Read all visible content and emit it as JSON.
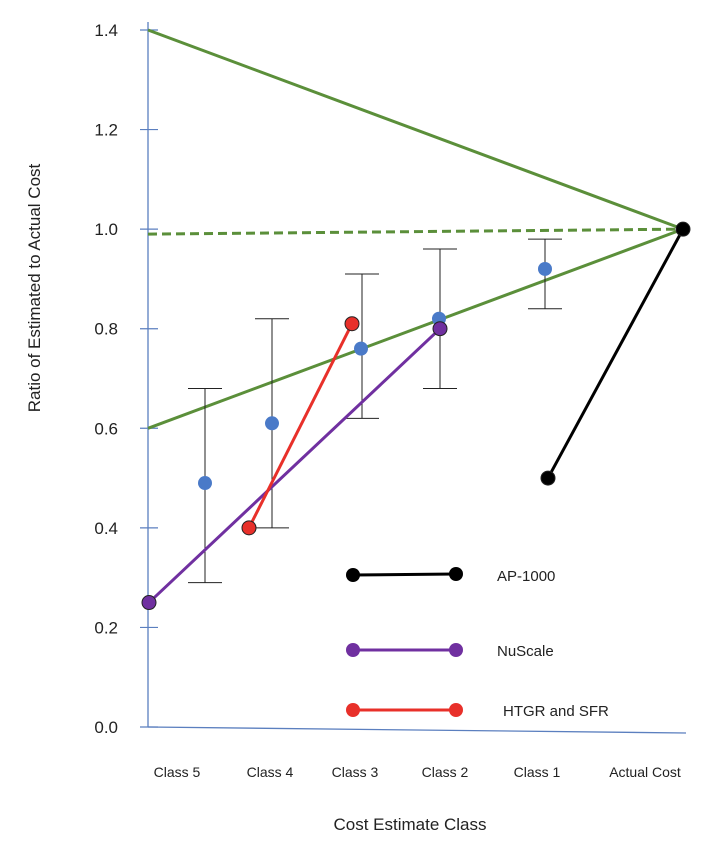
{
  "chart_data": {
    "type": "line",
    "title": "",
    "xlabel": "Cost Estimate Class",
    "ylabel": "Ratio of Estimated to Actual Cost",
    "categories": [
      "Class 5",
      "Class 4",
      "Class 3",
      "Class 2",
      "Class 1",
      "Actual Cost"
    ],
    "ylim": [
      0.0,
      1.4
    ],
    "yticks": [
      {
        "value": 0.0,
        "label": "0.0"
      },
      {
        "value": 0.2,
        "label": "0.2"
      },
      {
        "value": 0.4,
        "label": "0.4"
      },
      {
        "value": 0.6,
        "label": "0.6"
      },
      {
        "value": 0.8,
        "label": "0.8"
      },
      {
        "value": 1.0,
        "label": "1.0"
      },
      {
        "value": 1.2,
        "label": "1.2"
      },
      {
        "value": 1.4,
        "label": "1.4"
      }
    ],
    "grid": false,
    "legend_position": "bottom-right",
    "colors": {
      "axis": "#5b7fbf",
      "envelope": "#5b8f3a",
      "estimates": "#4a7ac8",
      "ap1000": "#000000",
      "nuscale": "#7030a0",
      "htgr": "#e8302a"
    },
    "estimate_points": [
      {
        "category": "Class 5",
        "value": 0.49,
        "low": 0.29,
        "high": 0.68
      },
      {
        "category": "Class 4",
        "value": 0.61,
        "low": 0.4,
        "high": 0.82
      },
      {
        "category": "Class 3",
        "value": 0.76,
        "low": 0.62,
        "high": 0.91
      },
      {
        "category": "Class 2",
        "value": 0.82,
        "low": 0.68,
        "high": 0.96
      },
      {
        "category": "Class 1",
        "value": 0.92,
        "low": 0.84,
        "high": 0.98
      }
    ],
    "envelope_lines": [
      {
        "style": "solid",
        "points": [
          {
            "x": "Class 5",
            "y": 1.4
          },
          {
            "x": "Actual Cost",
            "y": 1.0
          }
        ]
      },
      {
        "style": "solid",
        "points": [
          {
            "x": "Class 5",
            "y": 0.6
          },
          {
            "x": "Actual Cost",
            "y": 1.0
          }
        ]
      },
      {
        "style": "dashed",
        "points": [
          {
            "x": "Class 5",
            "y": 0.99
          },
          {
            "x": "Actual Cost",
            "y": 1.0
          }
        ]
      }
    ],
    "series": [
      {
        "name": "AP-1000",
        "color": "#000000",
        "points": [
          {
            "x": "Class 1",
            "y": 0.5
          },
          {
            "x": "Actual Cost",
            "y": 1.0
          }
        ]
      },
      {
        "name": "NuScale",
        "color": "#7030a0",
        "points": [
          {
            "x": "Class 5",
            "y": 0.25
          },
          {
            "x": "Class 2",
            "y": 0.8
          }
        ]
      },
      {
        "name": "HTGR and SFR",
        "color": "#e8302a",
        "points": [
          {
            "x": "Class 4",
            "y": 0.4
          },
          {
            "x": "Class 3",
            "y": 0.81
          }
        ]
      }
    ]
  }
}
